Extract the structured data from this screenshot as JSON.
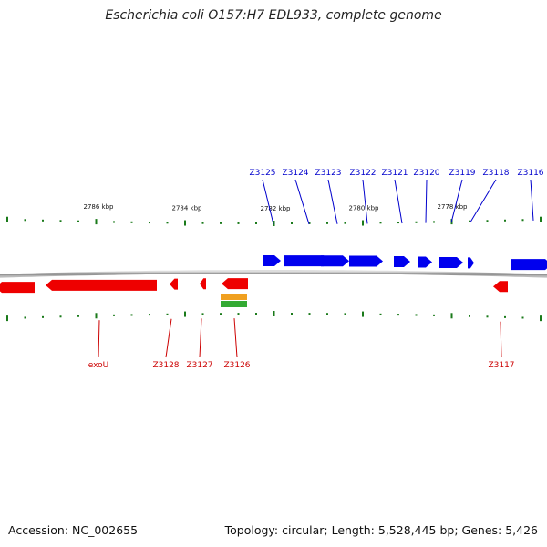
{
  "title": "Escherichia coli O157:H7 EDL933, complete genome",
  "accession": "Accession: NC_002655",
  "summary": "Topology: circular; Length: 5,528,445 bp; Genes: 5,426",
  "colors": {
    "forward": "#0000ee",
    "reverse": "#ee0000",
    "tick": "#1a7a1a",
    "backbone": "#888888",
    "top_label": "#0000cc",
    "bottom_label": "#cc0000",
    "feature_orange": "#f0a020",
    "feature_green": "#33aa33"
  },
  "ruler_labels": [
    "2786 kbp",
    "2784 kbp",
    "2782 kbp",
    "2780 kbp",
    "2778 kbp"
  ],
  "top_genes": [
    "Z3125",
    "Z3124",
    "Z3123",
    "Z3122",
    "Z3121",
    "Z3120",
    "Z3119",
    "Z3118",
    "Z3116"
  ],
  "bottom_genes": [
    "exoU",
    "Z3128",
    "Z3127",
    "Z3126",
    "Z3117"
  ]
}
